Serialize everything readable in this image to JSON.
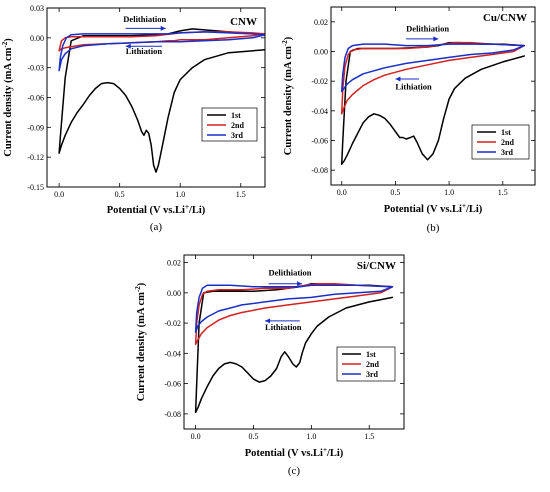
{
  "chart_data": [
    {
      "type": "line",
      "title": "CNW",
      "panel_label": "(a)",
      "xlabel_parts": [
        "Potential (V vs.Li",
        "+",
        "/Li)"
      ],
      "ylabel_parts": [
        "Current density (mA cm",
        "-2",
        ")"
      ],
      "xlim": [
        -0.1,
        1.7
      ],
      "ylim": [
        -0.15,
        0.03
      ],
      "xticks": [
        0.0,
        0.5,
        1.0,
        1.5
      ],
      "xtick_labels": [
        "0.0",
        "0.5",
        "1.0",
        "1.5"
      ],
      "yticks": [
        -0.15,
        -0.12,
        -0.09,
        -0.06,
        -0.03,
        0.0,
        0.03
      ],
      "ytick_labels": [
        "-0.15",
        "-0.12",
        "-0.09",
        "-0.06",
        "-0.03",
        "0.00",
        "0.03"
      ],
      "annotations": [
        {
          "text": "Delithiation",
          "x": 0.53,
          "y": 0.016,
          "arrow_from": 0.55,
          "arrow_to": 0.88,
          "arrow_y": 0.0095
        },
        {
          "text": "Lithiation",
          "x": 0.55,
          "y": -0.0165,
          "arrow_from": 0.85,
          "arrow_to": 0.55,
          "arrow_y": -0.0085
        }
      ],
      "legend": {
        "position": "bottom-right",
        "entries": [
          "1st",
          "2nd",
          "3rd"
        ]
      },
      "series": [
        {
          "name": "1st",
          "color": "#000000",
          "x": [
            1.7,
            1.4,
            1.2,
            1.1,
            1.0,
            0.95,
            0.9,
            0.85,
            0.82,
            0.8,
            0.78,
            0.76,
            0.74,
            0.72,
            0.7,
            0.68,
            0.65,
            0.6,
            0.55,
            0.5,
            0.45,
            0.4,
            0.35,
            0.3,
            0.25,
            0.2,
            0.15,
            0.1,
            0.05,
            0.02,
            0.0,
            0.01,
            0.05,
            0.1,
            0.2,
            0.4,
            0.6,
            0.8,
            0.9,
            1.0,
            1.1,
            1.2,
            1.3,
            1.4,
            1.5,
            1.6,
            1.7
          ],
          "y": [
            -0.012,
            -0.015,
            -0.022,
            -0.03,
            -0.042,
            -0.055,
            -0.08,
            -0.11,
            -0.128,
            -0.135,
            -0.128,
            -0.108,
            -0.096,
            -0.093,
            -0.098,
            -0.094,
            -0.083,
            -0.069,
            -0.058,
            -0.051,
            -0.046,
            -0.045,
            -0.046,
            -0.051,
            -0.058,
            -0.067,
            -0.075,
            -0.085,
            -0.098,
            -0.108,
            -0.116,
            -0.1,
            -0.04,
            -0.003,
            0.002,
            0.002,
            0.002,
            0.003,
            0.004,
            0.007,
            0.009,
            0.008,
            0.007,
            0.006,
            0.005,
            0.004,
            0.003
          ]
        },
        {
          "name": "2nd",
          "color": "#d42020",
          "x": [
            0.0,
            0.02,
            0.05,
            0.1,
            0.2,
            0.4,
            0.6,
            0.8,
            1.0,
            1.2,
            1.4,
            1.6,
            1.7,
            1.6,
            1.4,
            1.2,
            1.0,
            0.95,
            0.9,
            0.8,
            0.6,
            0.4,
            0.2,
            0.1,
            0.05,
            0.02,
            0.0
          ],
          "y": [
            -0.013,
            -0.003,
            0.0,
            0.001,
            0.001,
            0.001,
            0.001,
            0.002,
            0.005,
            0.006,
            0.006,
            0.005,
            0.004,
            0.002,
            0.0,
            -0.002,
            -0.002,
            -0.003,
            -0.003,
            -0.004,
            -0.005,
            -0.006,
            -0.007,
            -0.009,
            -0.01,
            -0.011,
            -0.013
          ]
        },
        {
          "name": "3rd",
          "color": "#1a2ec8",
          "x": [
            0.0,
            0.01,
            0.03,
            0.06,
            0.1,
            0.2,
            0.3,
            0.5,
            0.7,
            0.9,
            1.0,
            1.2,
            1.4,
            1.6,
            1.7,
            1.6,
            1.4,
            1.2,
            1.0,
            0.8,
            0.6,
            0.4,
            0.2,
            0.1,
            0.05,
            0.02,
            0.0
          ],
          "y": [
            -0.033,
            -0.02,
            -0.008,
            0.0,
            0.003,
            0.004,
            0.004,
            0.004,
            0.004,
            0.004,
            0.005,
            0.006,
            0.005,
            0.004,
            0.003,
            0.0,
            -0.002,
            -0.003,
            -0.004,
            -0.004,
            -0.005,
            -0.006,
            -0.008,
            -0.011,
            -0.016,
            -0.022,
            -0.033
          ]
        }
      ]
    },
    {
      "type": "line",
      "title": "Cu/CNW",
      "panel_label": "(b)",
      "xlabel_parts": [
        "Potential (V vs.Li",
        "+",
        "/Li)"
      ],
      "ylabel_parts": [
        "Current density (mA cm",
        "-2",
        ")"
      ],
      "xlim": [
        -0.1,
        1.8
      ],
      "ylim": [
        -0.09,
        0.03
      ],
      "xticks": [
        0.0,
        0.5,
        1.0,
        1.5
      ],
      "xtick_labels": [
        "0.0",
        "0.5",
        "1.0",
        "1.5"
      ],
      "yticks": [
        -0.08,
        -0.06,
        -0.04,
        -0.02,
        0.0,
        0.02
      ],
      "ytick_labels": [
        "-0.08",
        "-0.06",
        "-0.04",
        "-0.02",
        "0.00",
        "0.02"
      ],
      "annotations": [
        {
          "text": "Delithiation",
          "x": 0.6,
          "y": 0.0135,
          "arrow_from": 0.6,
          "arrow_to": 0.9,
          "arrow_y": 0.0085
        },
        {
          "text": "Lithiation",
          "x": 0.5,
          "y": -0.0255,
          "arrow_from": 0.72,
          "arrow_to": 0.5,
          "arrow_y": -0.0185
        }
      ],
      "legend": {
        "position": "bottom-right",
        "entries": [
          "1st",
          "2nd",
          "3rd"
        ]
      },
      "series": [
        {
          "name": "1st",
          "color": "#000000",
          "x": [
            1.7,
            1.5,
            1.3,
            1.15,
            1.05,
            1.0,
            0.95,
            0.9,
            0.85,
            0.8,
            0.75,
            0.7,
            0.67,
            0.64,
            0.6,
            0.57,
            0.54,
            0.5,
            0.45,
            0.4,
            0.35,
            0.3,
            0.25,
            0.2,
            0.15,
            0.1,
            0.05,
            0.02,
            0.0,
            0.01,
            0.04,
            0.08,
            0.15,
            0.3,
            0.5,
            0.8,
            0.9,
            1.0,
            1.1,
            1.3,
            1.5,
            1.7
          ],
          "y": [
            -0.003,
            -0.007,
            -0.012,
            -0.018,
            -0.025,
            -0.032,
            -0.045,
            -0.06,
            -0.069,
            -0.073,
            -0.069,
            -0.061,
            -0.057,
            -0.058,
            -0.059,
            -0.058,
            -0.058,
            -0.054,
            -0.049,
            -0.045,
            -0.043,
            -0.042,
            -0.044,
            -0.048,
            -0.055,
            -0.062,
            -0.07,
            -0.074,
            -0.076,
            -0.06,
            -0.02,
            0.0,
            0.002,
            0.002,
            0.002,
            0.003,
            0.004,
            0.006,
            0.006,
            0.005,
            0.005,
            0.004
          ]
        },
        {
          "name": "2nd",
          "color": "#d42020",
          "x": [
            0.0,
            0.01,
            0.03,
            0.06,
            0.1,
            0.2,
            0.4,
            0.6,
            0.8,
            0.95,
            1.05,
            1.2,
            1.4,
            1.7,
            1.6,
            1.4,
            1.2,
            1.0,
            0.8,
            0.6,
            0.4,
            0.3,
            0.2,
            0.1,
            0.05,
            0.02,
            0.0
          ],
          "y": [
            -0.042,
            -0.025,
            -0.01,
            -0.002,
            0.001,
            0.002,
            0.002,
            0.002,
            0.003,
            0.005,
            0.006,
            0.006,
            0.005,
            0.004,
            0.0,
            -0.002,
            -0.004,
            -0.006,
            -0.009,
            -0.012,
            -0.016,
            -0.019,
            -0.023,
            -0.029,
            -0.033,
            -0.038,
            -0.042
          ]
        },
        {
          "name": "3rd",
          "color": "#1a2ec8",
          "x": [
            0.0,
            0.01,
            0.03,
            0.06,
            0.1,
            0.2,
            0.4,
            0.6,
            0.8,
            1.0,
            1.2,
            1.4,
            1.7,
            1.6,
            1.4,
            1.2,
            1.0,
            0.8,
            0.6,
            0.4,
            0.3,
            0.2,
            0.1,
            0.05,
            0.02,
            0.0
          ],
          "y": [
            -0.027,
            -0.015,
            -0.004,
            0.002,
            0.004,
            0.005,
            0.005,
            0.004,
            0.004,
            0.005,
            0.005,
            0.005,
            0.004,
            0.001,
            -0.001,
            -0.002,
            -0.004,
            -0.006,
            -0.008,
            -0.011,
            -0.013,
            -0.015,
            -0.019,
            -0.022,
            -0.025,
            -0.027
          ]
        }
      ]
    },
    {
      "type": "line",
      "title": "Si/CNW",
      "panel_label": "(c)",
      "xlabel_parts": [
        "Potential (V vs.Li",
        "+",
        "/Li)"
      ],
      "ylabel_parts": [
        "Current density (mA cm",
        "-2",
        ")"
      ],
      "xlim": [
        -0.1,
        1.8
      ],
      "ylim": [
        -0.09,
        0.025
      ],
      "xticks": [
        0.0,
        0.5,
        1.0,
        1.5
      ],
      "xtick_labels": [
        "0.0",
        "0.5",
        "1.0",
        "1.5"
      ],
      "yticks": [
        -0.08,
        -0.06,
        -0.04,
        -0.02,
        0.0,
        0.02
      ],
      "ytick_labels": [
        "-0.08",
        "-0.06",
        "-0.04",
        "-0.02",
        "0.00",
        "0.02"
      ],
      "annotations": [
        {
          "text": "Delithiation",
          "x": 0.63,
          "y": 0.0115,
          "arrow_from": 0.63,
          "arrow_to": 0.92,
          "arrow_y": 0.006
        },
        {
          "text": "Lithiation",
          "x": 0.6,
          "y": -0.0245,
          "arrow_from": 0.9,
          "arrow_to": 0.6,
          "arrow_y": -0.0185
        }
      ],
      "legend": {
        "position": "bottom-right",
        "entries": [
          "1st",
          "2nd",
          "3rd"
        ]
      },
      "series": [
        {
          "name": "1st",
          "color": "#000000",
          "x": [
            1.7,
            1.5,
            1.3,
            1.15,
            1.05,
            1.0,
            0.95,
            0.92,
            0.9,
            0.87,
            0.84,
            0.8,
            0.77,
            0.74,
            0.7,
            0.65,
            0.6,
            0.55,
            0.5,
            0.45,
            0.4,
            0.35,
            0.3,
            0.25,
            0.2,
            0.15,
            0.1,
            0.05,
            0.02,
            0.0,
            0.01,
            0.03,
            0.07,
            0.15,
            0.3,
            0.5,
            0.7,
            0.9,
            0.95,
            1.0,
            1.1,
            1.3,
            1.5,
            1.7
          ],
          "y": [
            -0.003,
            -0.006,
            -0.01,
            -0.016,
            -0.022,
            -0.027,
            -0.033,
            -0.04,
            -0.046,
            -0.049,
            -0.047,
            -0.042,
            -0.039,
            -0.042,
            -0.05,
            -0.055,
            -0.058,
            -0.059,
            -0.057,
            -0.053,
            -0.049,
            -0.047,
            -0.046,
            -0.047,
            -0.05,
            -0.055,
            -0.062,
            -0.07,
            -0.076,
            -0.079,
            -0.06,
            -0.02,
            0.0,
            0.001,
            0.001,
            0.001,
            0.002,
            0.004,
            0.005,
            0.006,
            0.006,
            0.005,
            0.005,
            0.004
          ]
        },
        {
          "name": "2nd",
          "color": "#d42020",
          "x": [
            0.0,
            0.01,
            0.03,
            0.06,
            0.1,
            0.2,
            0.4,
            0.6,
            0.8,
            0.95,
            1.05,
            1.2,
            1.4,
            1.7,
            1.6,
            1.4,
            1.2,
            1.0,
            0.8,
            0.6,
            0.4,
            0.3,
            0.2,
            0.1,
            0.05,
            0.02,
            0.0
          ],
          "y": [
            -0.034,
            -0.02,
            -0.008,
            -0.001,
            0.001,
            0.002,
            0.002,
            0.003,
            0.003,
            0.005,
            0.006,
            0.006,
            0.005,
            0.004,
            0.0,
            -0.002,
            -0.004,
            -0.006,
            -0.008,
            -0.01,
            -0.013,
            -0.015,
            -0.018,
            -0.023,
            -0.027,
            -0.031,
            -0.034
          ]
        },
        {
          "name": "3rd",
          "color": "#1a2ec8",
          "x": [
            0.0,
            0.01,
            0.03,
            0.06,
            0.1,
            0.2,
            0.3,
            0.5,
            0.7,
            0.9,
            1.0,
            1.2,
            1.4,
            1.7,
            1.6,
            1.4,
            1.2,
            1.0,
            0.8,
            0.6,
            0.4,
            0.3,
            0.2,
            0.1,
            0.05,
            0.02,
            0.0
          ],
          "y": [
            -0.026,
            -0.013,
            -0.003,
            0.003,
            0.005,
            0.005,
            0.005,
            0.004,
            0.004,
            0.004,
            0.005,
            0.005,
            0.005,
            0.004,
            0.001,
            0.0,
            -0.001,
            -0.003,
            -0.004,
            -0.006,
            -0.008,
            -0.01,
            -0.012,
            -0.016,
            -0.019,
            -0.022,
            -0.026
          ]
        }
      ]
    }
  ]
}
